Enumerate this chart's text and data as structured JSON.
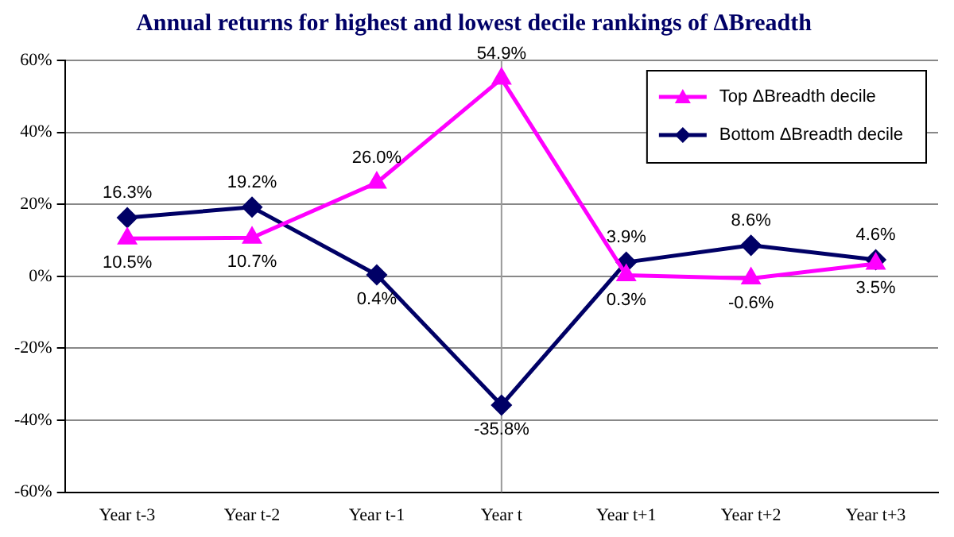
{
  "chart_data": {
    "type": "line",
    "title": "Annual returns for highest and lowest decile rankings of ΔBreadth",
    "categories": [
      "Year t-3",
      "Year t-2",
      "Year t-1",
      "Year t",
      "Year t+1",
      "Year t+2",
      "Year t+3"
    ],
    "series": [
      {
        "name": "Top ΔBreadth decile",
        "color": "#ff00ff",
        "marker": "triangle",
        "values": [
          10.5,
          10.7,
          26.0,
          54.9,
          0.3,
          -0.6,
          3.5
        ],
        "value_labels": [
          "10.5%",
          "10.7%",
          "26.0%",
          "54.9%",
          "0.3%",
          "-0.6%",
          "3.5%"
        ]
      },
      {
        "name": "Bottom ΔBreadth decile",
        "color": "#000066",
        "marker": "diamond",
        "values": [
          16.3,
          19.2,
          0.4,
          -35.8,
          3.9,
          8.6,
          4.6
        ],
        "value_labels": [
          "16.3%",
          "19.2%",
          "0.4%",
          "-35.8%",
          "3.9%",
          "8.6%",
          "4.6%"
        ]
      }
    ],
    "ylim": [
      -60,
      60
    ],
    "yticks": [
      {
        "value": -60,
        "label": "-60%"
      },
      {
        "value": -40,
        "label": "-40%"
      },
      {
        "value": -20,
        "label": "-20%"
      },
      {
        "value": 0,
        "label": "0%"
      },
      {
        "value": 20,
        "label": "20%"
      },
      {
        "value": 40,
        "label": "40%"
      },
      {
        "value": 60,
        "label": "60%"
      }
    ],
    "ref_lines": [
      {
        "axis": "x",
        "value": "Year t",
        "color": "#999999"
      }
    ],
    "grid": "y",
    "legend": "top right",
    "line_style": "solid"
  }
}
